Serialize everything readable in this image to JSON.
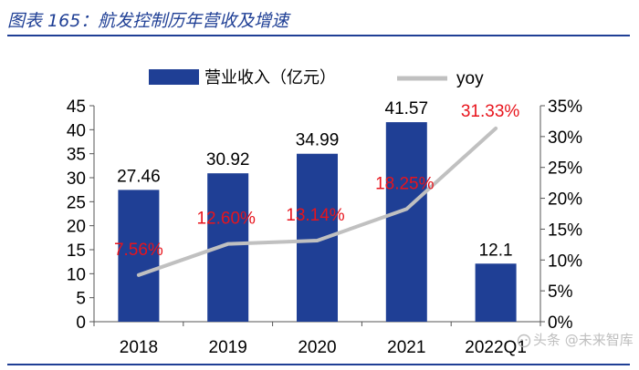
{
  "figure": {
    "title": "图表 165：航发控制历年营收及增速"
  },
  "watermark": {
    "text": "头条 @未来智库"
  },
  "colors": {
    "bar": "#1f3f95",
    "line": "#c0c0c0",
    "growth_label": "#e8141c",
    "axis_text": "#000000",
    "title": "#1f3f95"
  },
  "chart_data": {
    "type": "bar",
    "categories": [
      "2018",
      "2019",
      "2020",
      "2021",
      "2022Q1"
    ],
    "series": [
      {
        "name": "营业收入（亿元）",
        "type": "bar",
        "axis": "left",
        "values": [
          27.46,
          30.92,
          34.99,
          41.57,
          12.1
        ],
        "labels": [
          "27.46",
          "30.92",
          "34.99",
          "41.57",
          "12.1"
        ]
      },
      {
        "name": "yoy",
        "type": "line",
        "axis": "right",
        "values": [
          7.56,
          12.6,
          13.14,
          18.25,
          31.33
        ],
        "labels": [
          "7.56%",
          "12.60%",
          "13.14%",
          "18.25%",
          "31.33%"
        ]
      }
    ],
    "left_axis": {
      "ylim": [
        0,
        45
      ],
      "ticks": [
        "0",
        "5",
        "10",
        "15",
        "20",
        "25",
        "30",
        "35",
        "40",
        "45"
      ]
    },
    "right_axis": {
      "ylim": [
        0,
        35
      ],
      "ticks": [
        "0%",
        "5%",
        "10%",
        "15%",
        "20%",
        "25%",
        "30%",
        "35%"
      ]
    },
    "legend_position": "top"
  }
}
